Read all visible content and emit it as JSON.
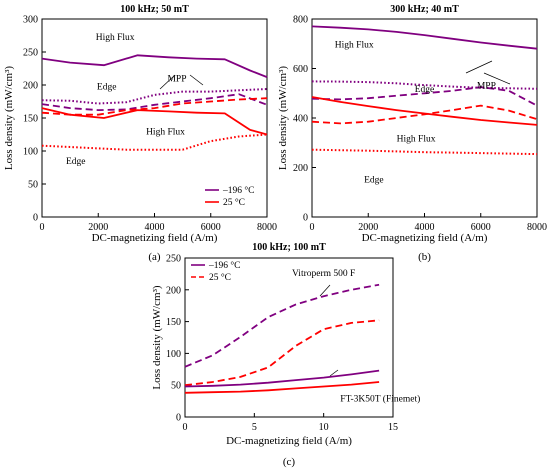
{
  "colors": {
    "cryo": "#800080",
    "room": "#ff0000",
    "axis": "#000000",
    "grid": "#ffffff"
  },
  "chart_data": [
    {
      "type": "line",
      "id": "a",
      "title": "100 kHz; 50 mT",
      "xlabel": "DC-magnetizing field (A/m)",
      "ylabel": "Loss density (mW/cm³)",
      "caption": "(a)",
      "xlim": [
        0,
        8000
      ],
      "ylim": [
        0,
        300
      ],
      "xticks": [
        0,
        2000,
        4000,
        6000,
        8000
      ],
      "yticks": [
        0,
        50,
        100,
        150,
        200,
        250,
        300
      ],
      "legend": {
        "position": "bottom-right",
        "entries": [
          {
            "label": "–196 °C",
            "color": "cryo"
          },
          {
            "label": "25 °C",
            "color": "room"
          }
        ]
      },
      "series": [
        {
          "name": "High Flux",
          "temperature": "–196 °C",
          "style": "solid",
          "x": [
            0,
            1000,
            2200,
            3400,
            4500,
            5500,
            6500,
            7400,
            8000
          ],
          "y": [
            240,
            234,
            230,
            245,
            242,
            240,
            239,
            222,
            212
          ]
        },
        {
          "name": "Edge",
          "temperature": "–196 °C",
          "style": "dotted",
          "x": [
            0,
            1000,
            2000,
            3000,
            4000,
            5000,
            6000,
            7000,
            8000
          ],
          "y": [
            177,
            176,
            172,
            174,
            185,
            190,
            190,
            192,
            194
          ]
        },
        {
          "name": "MPP",
          "temperature": "–196 °C",
          "style": "dashed",
          "x": [
            0,
            1000,
            2000,
            3000,
            4000,
            5000,
            6000,
            7000,
            8000
          ],
          "y": [
            171,
            165,
            162,
            163,
            170,
            175,
            180,
            186,
            170
          ]
        },
        {
          "name": "High Flux",
          "temperature": "25 °C",
          "style": "solid",
          "x": [
            0,
            1000,
            2200,
            3400,
            4500,
            5500,
            6500,
            7400,
            8000
          ],
          "y": [
            165,
            155,
            150,
            162,
            160,
            158,
            157,
            132,
            125
          ]
        },
        {
          "name": "MPP",
          "temperature": "25 °C",
          "style": "dashed",
          "x": [
            0,
            1000,
            2000,
            3000,
            4000,
            5000,
            6000,
            7000,
            8000
          ],
          "y": [
            158,
            155,
            155,
            162,
            165,
            172,
            175,
            178,
            180
          ]
        },
        {
          "name": "Edge",
          "temperature": "25 °C",
          "style": "dotted",
          "x": [
            0,
            1000,
            2000,
            3000,
            4000,
            5000,
            6000,
            7000,
            8000
          ],
          "y": [
            108,
            106,
            104,
            102,
            102,
            102,
            115,
            122,
            125
          ]
        }
      ],
      "annotations": [
        {
          "text": "High Flux",
          "x": 2600,
          "y": 268
        },
        {
          "text": "Edge",
          "x": 2300,
          "y": 193
        },
        {
          "text": "MPP",
          "x": 4800,
          "y": 205
        },
        {
          "text": "High Flux",
          "x": 3700,
          "y": 125
        },
        {
          "text": "Edge",
          "x": 1200,
          "y": 80
        }
      ]
    },
    {
      "type": "line",
      "id": "b",
      "title": "300 kHz; 40 mT",
      "xlabel": "DC-magnetizing field (A/m)",
      "ylabel": "Loss density (mW/cm³)",
      "caption": "(b)",
      "xlim": [
        0,
        8000
      ],
      "ylim": [
        0,
        800
      ],
      "xticks": [
        0,
        2000,
        4000,
        6000,
        8000
      ],
      "yticks": [
        0,
        200,
        400,
        600,
        800
      ],
      "series": [
        {
          "name": "High Flux",
          "temperature": "–196 °C",
          "style": "solid",
          "x": [
            0,
            1000,
            2000,
            3000,
            4000,
            5000,
            6000,
            7000,
            8000
          ],
          "y": [
            770,
            765,
            758,
            748,
            735,
            720,
            705,
            692,
            680
          ]
        },
        {
          "name": "Edge",
          "temperature": "–196 °C",
          "style": "dotted",
          "x": [
            0,
            1000,
            2000,
            3000,
            4000,
            5000,
            6000,
            7000,
            8000
          ],
          "y": [
            548,
            547,
            545,
            540,
            533,
            527,
            522,
            520,
            518
          ]
        },
        {
          "name": "MPP",
          "temperature": "–196 °C",
          "style": "dashed",
          "x": [
            0,
            1000,
            2000,
            3000,
            4000,
            5000,
            6000,
            7000,
            8000
          ],
          "y": [
            478,
            475,
            480,
            490,
            500,
            510,
            525,
            510,
            450
          ]
        },
        {
          "name": "High Flux",
          "temperature": "25 °C",
          "style": "solid",
          "x": [
            0,
            1000,
            2000,
            3000,
            4000,
            5000,
            6000,
            7000,
            8000
          ],
          "y": [
            485,
            465,
            448,
            432,
            418,
            405,
            392,
            382,
            372
          ]
        },
        {
          "name": "MPP",
          "temperature": "25 °C",
          "style": "dashed",
          "x": [
            0,
            1000,
            2000,
            3000,
            4000,
            5000,
            6000,
            7000,
            8000
          ],
          "y": [
            385,
            378,
            385,
            400,
            415,
            432,
            450,
            430,
            395
          ]
        },
        {
          "name": "Edge",
          "temperature": "25 °C",
          "style": "dotted",
          "x": [
            0,
            1000,
            2000,
            3000,
            4000,
            5000,
            6000,
            7000,
            8000
          ],
          "y": [
            272,
            270,
            268,
            265,
            262,
            260,
            258,
            256,
            254
          ]
        }
      ],
      "annotations": [
        {
          "text": "High Flux",
          "x": 1500,
          "y": 685
        },
        {
          "text": "Edge",
          "x": 4000,
          "y": 505
        },
        {
          "text": "MPP",
          "x": 6200,
          "y": 520
        },
        {
          "text": "High Flux",
          "x": 3700,
          "y": 305
        },
        {
          "text": "Edge",
          "x": 2200,
          "y": 140
        }
      ]
    },
    {
      "type": "line",
      "id": "c",
      "title": "100 kHz; 100 mT",
      "xlabel": "DC-magnetizing field (A/m)",
      "ylabel": "Loss density (mW/cm³)",
      "caption": "(c)",
      "xlim": [
        0,
        15
      ],
      "ylim": [
        0,
        250
      ],
      "xticks": [
        0,
        5,
        10,
        15
      ],
      "yticks": [
        0,
        50,
        100,
        150,
        200,
        250
      ],
      "legend": {
        "position": "top-left",
        "entries": [
          {
            "label": "–196 °C",
            "color": "cryo"
          },
          {
            "label": "25 °C",
            "color": "room"
          }
        ]
      },
      "series": [
        {
          "name": "Vitroperm 500 F",
          "temperature": "–196 °C",
          "style": "dashed",
          "x": [
            0,
            2,
            4,
            6,
            8,
            10,
            12,
            14
          ],
          "y": [
            79,
            97,
            126,
            157,
            177,
            190,
            200,
            208
          ]
        },
        {
          "name": "Vitroperm 500 F",
          "temperature": "25 °C",
          "style": "dashed",
          "x": [
            0,
            2,
            4,
            6,
            8,
            10,
            12,
            14
          ],
          "y": [
            50,
            55,
            63,
            78,
            112,
            138,
            148,
            152
          ]
        },
        {
          "name": "FT-3K50T (Finemet)",
          "temperature": "–196 °C",
          "style": "solid",
          "x": [
            0,
            2,
            4,
            6,
            8,
            10,
            12,
            14
          ],
          "y": [
            48,
            49,
            51,
            54,
            58,
            62,
            67,
            73
          ]
        },
        {
          "name": "FT-3K50T (Finemet)",
          "temperature": "25 °C",
          "style": "solid",
          "x": [
            0,
            2,
            4,
            6,
            8,
            10,
            12,
            14
          ],
          "y": [
            38,
            39,
            40,
            42,
            45,
            48,
            51,
            55
          ]
        }
      ],
      "annotations": [
        {
          "text": "Vitroperm 500 F",
          "x": 10,
          "y": 222
        },
        {
          "text": "FT-3K50T (Finemet)",
          "x": 11.2,
          "y": 24
        }
      ]
    }
  ]
}
